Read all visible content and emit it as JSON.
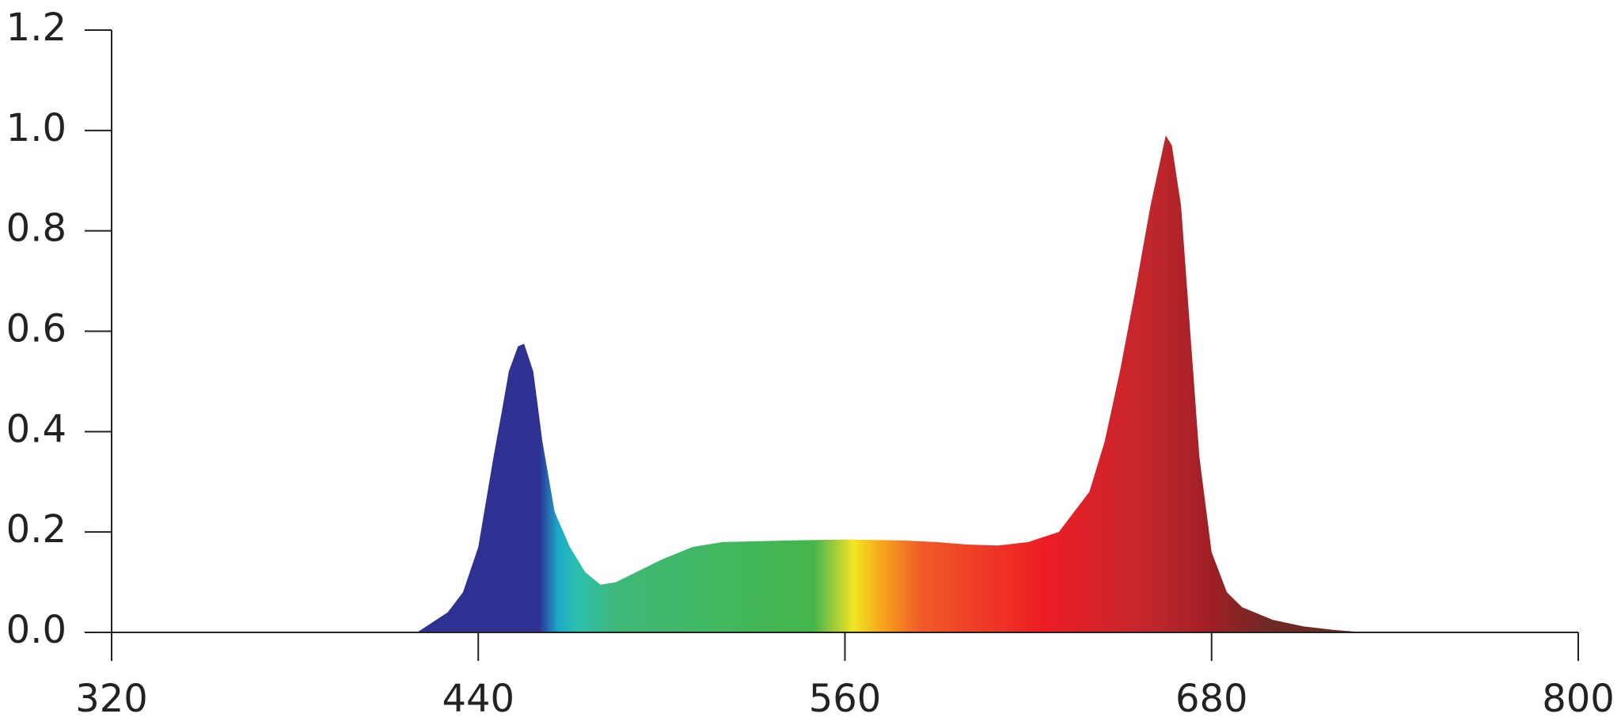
{
  "chart_data": {
    "type": "area",
    "x": [
      420,
      430,
      435,
      440,
      445,
      448,
      450,
      453,
      455,
      458,
      461,
      465,
      470,
      475,
      480,
      485,
      490,
      500,
      510,
      520,
      540,
      560,
      580,
      590,
      600,
      610,
      620,
      630,
      640,
      645,
      650,
      655,
      660,
      665,
      667,
      670,
      673,
      676,
      680,
      685,
      690,
      700,
      710,
      720,
      730
    ],
    "values": [
      0,
      0.04,
      0.08,
      0.17,
      0.35,
      0.45,
      0.52,
      0.57,
      0.575,
      0.52,
      0.38,
      0.24,
      0.17,
      0.12,
      0.095,
      0.1,
      0.115,
      0.145,
      0.17,
      0.18,
      0.183,
      0.185,
      0.183,
      0.18,
      0.175,
      0.173,
      0.18,
      0.2,
      0.28,
      0.38,
      0.52,
      0.68,
      0.85,
      0.99,
      0.97,
      0.85,
      0.6,
      0.35,
      0.16,
      0.08,
      0.05,
      0.025,
      0.012,
      0.005,
      0
    ],
    "gradient": [
      {
        "x": 420,
        "color": "#2e3192"
      },
      {
        "x": 460,
        "color": "#2e3192"
      },
      {
        "x": 466,
        "color": "#1ba8c9"
      },
      {
        "x": 472,
        "color": "#2bbfb0"
      },
      {
        "x": 485,
        "color": "#3db878"
      },
      {
        "x": 550,
        "color": "#45b649"
      },
      {
        "x": 555,
        "color": "#8dc63f"
      },
      {
        "x": 563,
        "color": "#f2e522"
      },
      {
        "x": 572,
        "color": "#f7a51c"
      },
      {
        "x": 585,
        "color": "#f05a28"
      },
      {
        "x": 625,
        "color": "#ed1c24"
      },
      {
        "x": 660,
        "color": "#c1272d"
      },
      {
        "x": 680,
        "color": "#9e1f24"
      },
      {
        "x": 700,
        "color": "#6d2a24"
      }
    ],
    "xlim": [
      320,
      800
    ],
    "xticks": [
      320,
      440,
      560,
      680,
      800
    ],
    "ylim": [
      0,
      1.2
    ],
    "yticks": [
      {
        "value": 0,
        "label": "0.0"
      },
      0.2,
      0.4,
      0.6,
      0.8,
      {
        "value": 1,
        "label": "1.0"
      },
      1.2
    ],
    "grid": false
  }
}
